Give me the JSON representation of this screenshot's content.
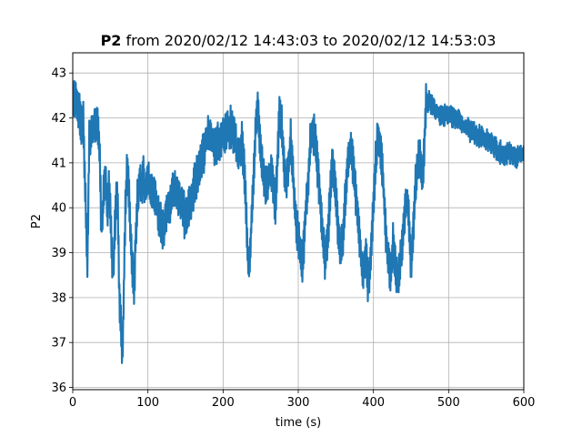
{
  "chart_data": {
    "type": "line",
    "title_bold": "P2",
    "title_rest": " from 2020/02/12 14:43:03 to 2020/02/12 14:53:03",
    "xlabel": "time (s)",
    "ylabel": "P2",
    "xlim": [
      0,
      600
    ],
    "ylim": [
      35.95,
      43.45
    ],
    "xticks": [
      0,
      100,
      200,
      300,
      400,
      500,
      600
    ],
    "yticks": [
      36,
      37,
      38,
      39,
      40,
      41,
      42,
      43
    ],
    "grid": true,
    "line_color": "#1f77b4",
    "series": [
      {
        "x": [
          0,
          4,
          8,
          12,
          14,
          16,
          18,
          19,
          20,
          22,
          26,
          30,
          33,
          36,
          38,
          40,
          42,
          44,
          46,
          48,
          50,
          52,
          54,
          56,
          58,
          60,
          62,
          64,
          66,
          68,
          70,
          72,
          74,
          76,
          78,
          80,
          82,
          84,
          86,
          88,
          90,
          92,
          94,
          96,
          100,
          105,
          110,
          115,
          120,
          125,
          128,
          130,
          135,
          140,
          145,
          150,
          155,
          160,
          165,
          170,
          175,
          180,
          185,
          190,
          195,
          200,
          205,
          210,
          215,
          220,
          225,
          228,
          230,
          232,
          234,
          236,
          238,
          240,
          242,
          244,
          246,
          248,
          250,
          255,
          260,
          265,
          268,
          270,
          272,
          275,
          278,
          280,
          283,
          286,
          290,
          293,
          296,
          300,
          303,
          306,
          310,
          313,
          316,
          320,
          323,
          326,
          330,
          333,
          336,
          340,
          343,
          346,
          350,
          353,
          356,
          360,
          363,
          366,
          370,
          373,
          376,
          380,
          383,
          386,
          390,
          393,
          396,
          400,
          403,
          406,
          410,
          413,
          416,
          420,
          423,
          426,
          430,
          433,
          436,
          440,
          443,
          446,
          450,
          453,
          456,
          460,
          463,
          466,
          468,
          470,
          472,
          475,
          480,
          490,
          500,
          510,
          520,
          530,
          540,
          550,
          560,
          565,
          570,
          575,
          580,
          585,
          590,
          595,
          600
        ],
        "y": [
          42.3,
          42.5,
          42.2,
          41.8,
          42.0,
          40.8,
          39.5,
          38.7,
          39.0,
          41.6,
          41.7,
          41.8,
          41.9,
          41.2,
          39.5,
          40.0,
          40.6,
          40.7,
          39.8,
          40.5,
          40.0,
          39.0,
          38.6,
          39.5,
          40.2,
          40.0,
          38.0,
          37.5,
          36.6,
          38.2,
          40.0,
          40.8,
          40.5,
          39.8,
          39.0,
          38.5,
          38.2,
          39.5,
          40.2,
          40.5,
          40.6,
          40.5,
          40.8,
          40.4,
          40.6,
          40.3,
          40.2,
          39.8,
          39.5,
          40.0,
          39.9,
          40.2,
          40.4,
          40.3,
          40.1,
          39.7,
          40.0,
          40.4,
          40.7,
          41.0,
          41.3,
          41.7,
          41.5,
          41.4,
          41.5,
          41.6,
          41.7,
          41.8,
          41.6,
          41.2,
          41.4,
          41.0,
          40.2,
          39.3,
          38.5,
          39.0,
          39.8,
          40.5,
          41.2,
          42.0,
          42.2,
          41.8,
          41.3,
          40.5,
          40.6,
          40.8,
          40.3,
          40.0,
          41.0,
          42.2,
          41.8,
          41.2,
          40.5,
          40.8,
          41.5,
          40.8,
          39.8,
          39.4,
          39.0,
          38.7,
          40.0,
          40.5,
          41.5,
          41.7,
          41.4,
          40.8,
          40.0,
          39.3,
          38.8,
          39.6,
          40.5,
          41.0,
          40.3,
          39.5,
          38.9,
          39.5,
          40.3,
          41.0,
          41.4,
          41.0,
          40.4,
          39.6,
          39.0,
          38.6,
          39.0,
          38.3,
          38.8,
          40.0,
          41.0,
          41.6,
          41.3,
          40.6,
          39.5,
          38.8,
          38.5,
          39.2,
          38.6,
          38.4,
          38.8,
          39.5,
          40.2,
          40.0,
          38.7,
          39.5,
          40.6,
          41.1,
          41.0,
          40.6,
          41.5,
          42.4,
          42.3,
          42.4,
          42.2,
          42.0,
          42.1,
          42.0,
          41.8,
          41.7,
          41.6,
          41.5,
          41.4,
          41.3,
          41.2,
          41.1,
          41.3,
          41.2,
          41.1,
          41.2,
          41.2
        ]
      }
    ]
  }
}
